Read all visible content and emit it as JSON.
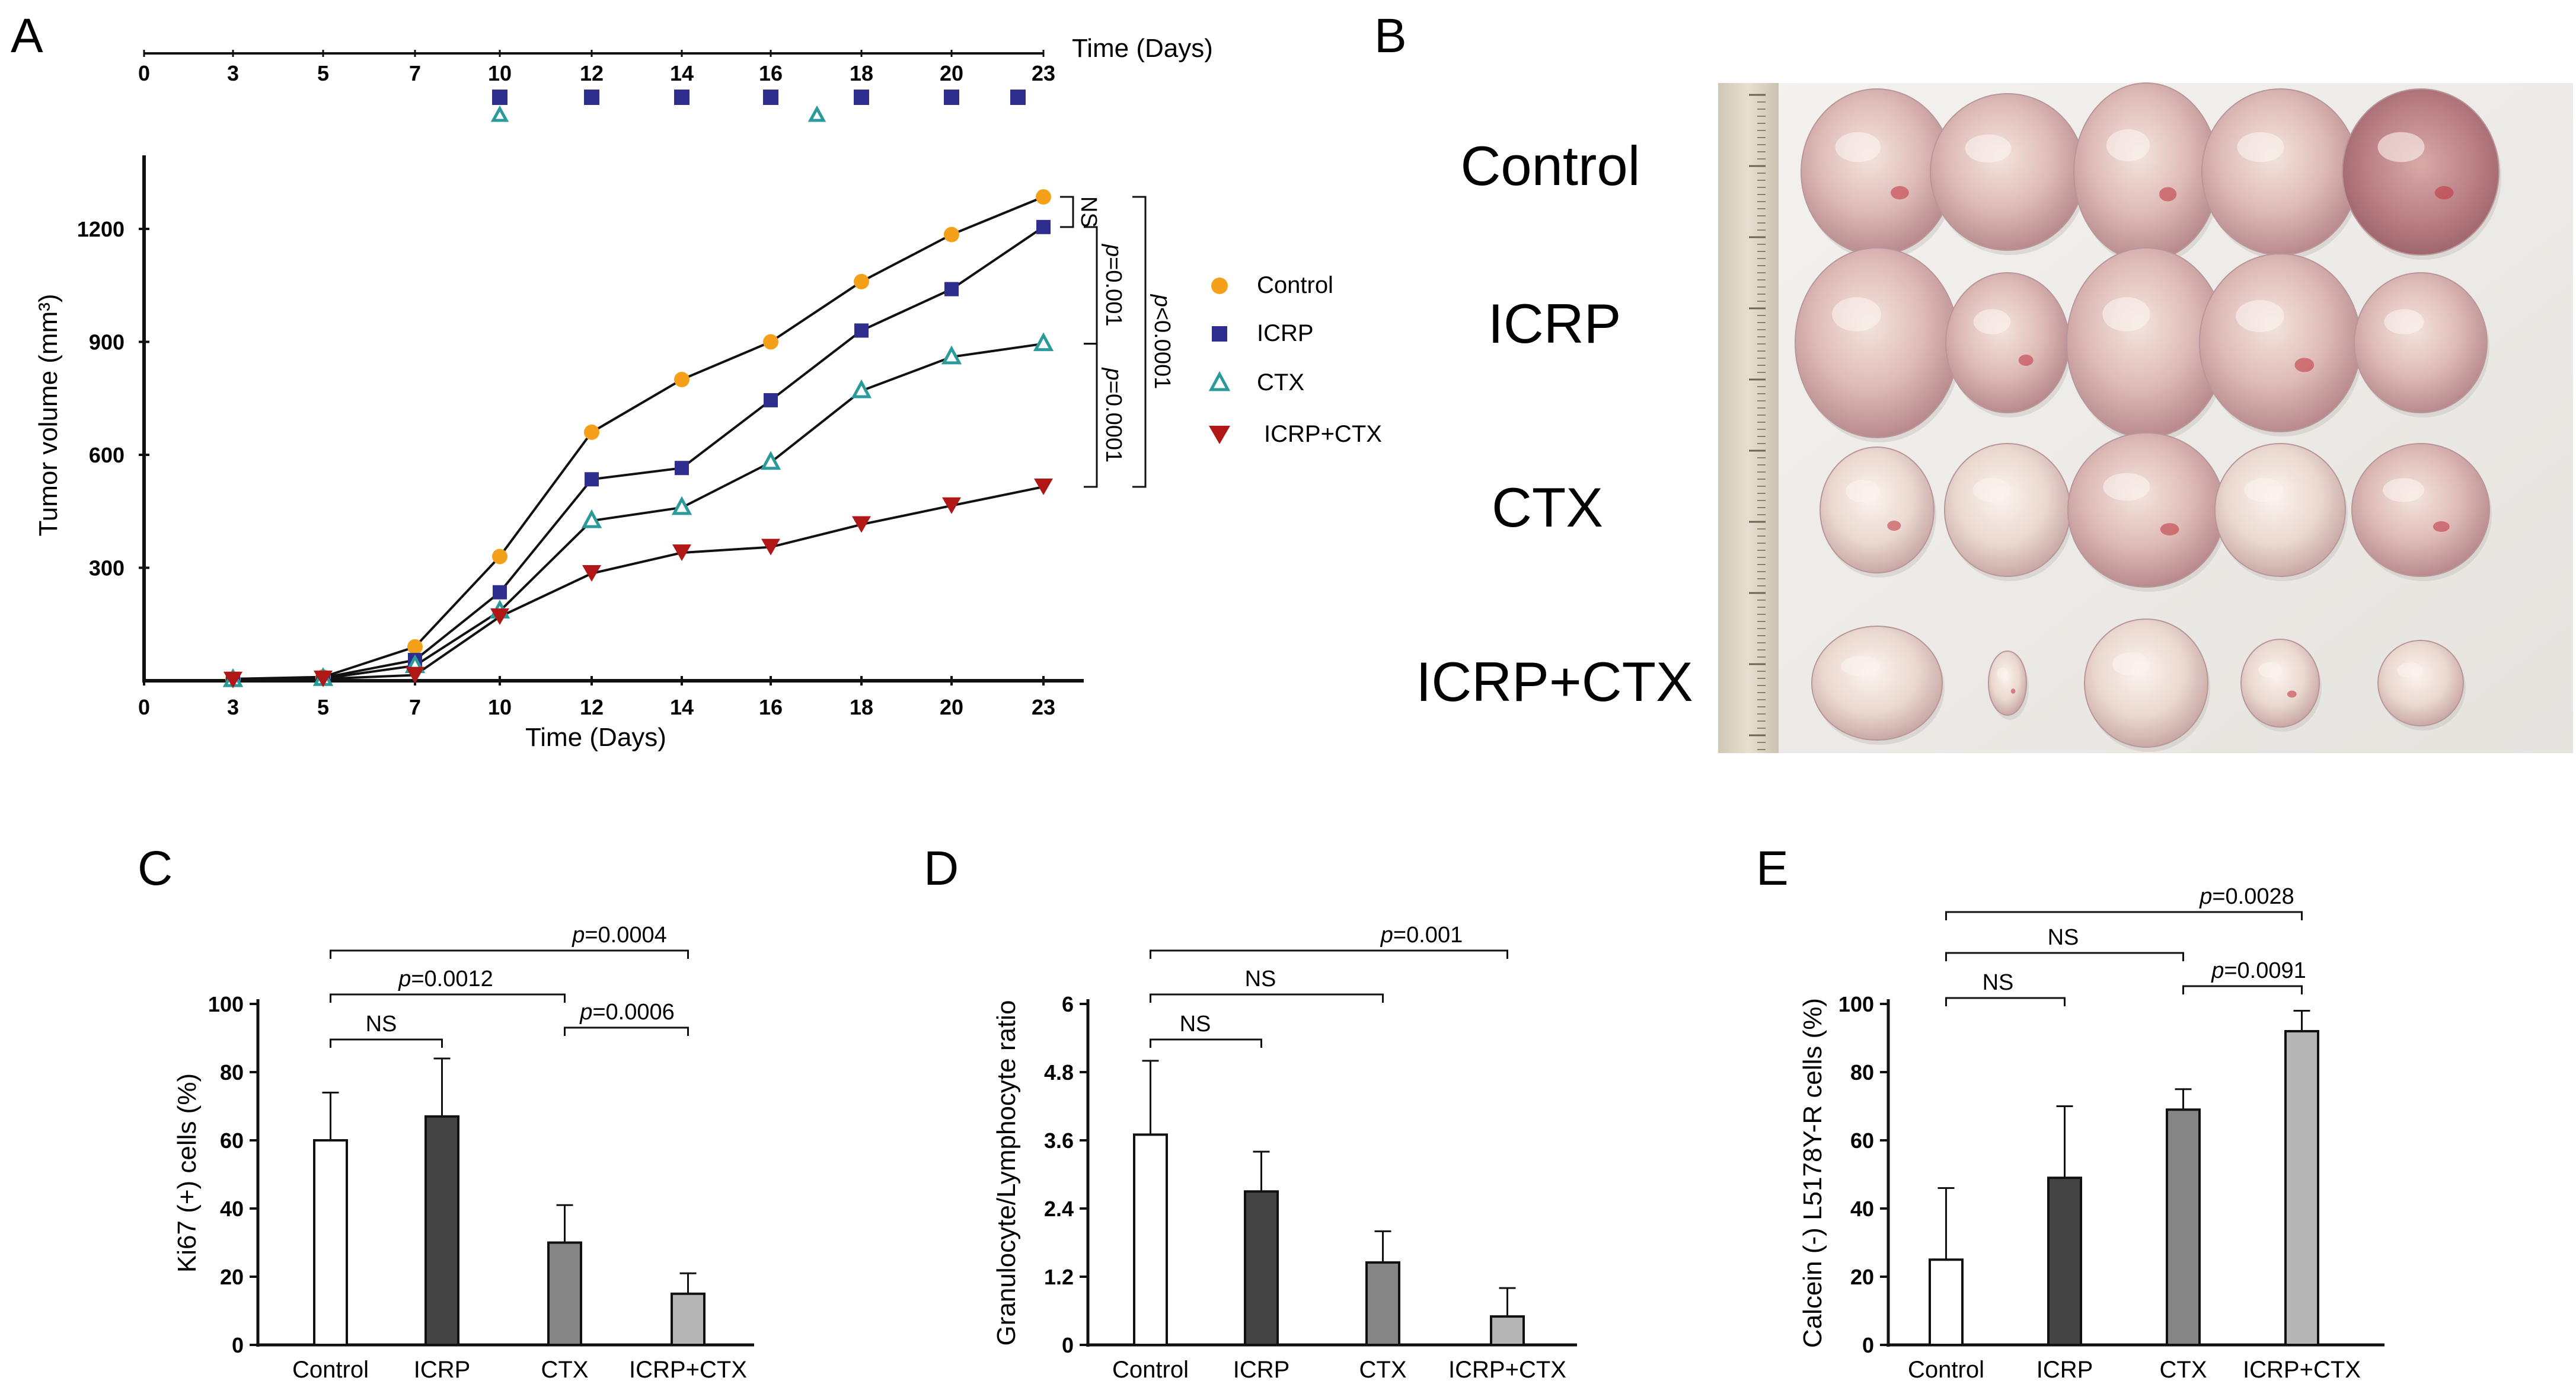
{
  "panels": {
    "A": "A",
    "B": "B",
    "C": "C",
    "D": "D",
    "E": "E"
  },
  "chart_data": [
    {
      "panel": "A",
      "type": "line",
      "title": "",
      "xlabel": "Time (Days)",
      "ylabel": "Tumor volume (mm³)",
      "ylim": [
        0,
        1350
      ],
      "xlim": [
        0,
        24
      ],
      "x_ticks": [
        "0",
        "3",
        "5",
        "7",
        "10",
        "12",
        "14",
        "16",
        "18",
        "20",
        "23"
      ],
      "y_ticks": [
        "300",
        "600",
        "900",
        "1200"
      ],
      "series": [
        {
          "name": "Control",
          "marker": "circle",
          "color": "#F5A01A",
          "x": [
            3,
            5,
            7,
            10,
            12,
            14,
            16,
            18,
            20,
            23
          ],
          "y": [
            5,
            10,
            90,
            330,
            660,
            800,
            900,
            1060,
            1185,
            1285
          ]
        },
        {
          "name": "ICRP",
          "marker": "square",
          "color": "#2E2E8F",
          "x": [
            3,
            5,
            7,
            10,
            12,
            14,
            16,
            18,
            20,
            23
          ],
          "y": [
            5,
            8,
            55,
            235,
            535,
            565,
            745,
            930,
            1040,
            1205
          ]
        },
        {
          "name": "CTX",
          "marker": "triangle-open",
          "color": "#2A9A9A",
          "x": [
            3,
            5,
            7,
            10,
            12,
            14,
            16,
            18,
            20,
            23
          ],
          "y": [
            3,
            6,
            40,
            185,
            425,
            460,
            580,
            770,
            860,
            895
          ]
        },
        {
          "name": "ICRP+CTX",
          "marker": "triangle-down",
          "color": "#B01818",
          "x": [
            3,
            5,
            7,
            10,
            12,
            14,
            16,
            18,
            20,
            23
          ],
          "y": [
            2,
            5,
            15,
            170,
            285,
            340,
            355,
            415,
            465,
            515
          ]
        }
      ],
      "annotations": [
        "NS",
        "p=0.001",
        "p<0.0001",
        "p=0.0001"
      ],
      "schedule": {
        "axis_label": "Time (Days)",
        "ticks": [
          "0",
          "3",
          "5",
          "7",
          "10",
          "12",
          "14",
          "16",
          "18",
          "20",
          "23"
        ],
        "icrp_days": [
          10,
          12,
          14,
          16,
          18,
          20,
          22
        ],
        "ctx_days": [
          10,
          17
        ]
      }
    },
    {
      "panel": "C",
      "type": "bar",
      "ylabel": "Ki67 (+) cells (%)",
      "ylim": [
        0,
        100
      ],
      "y_ticks": [
        "0",
        "20",
        "40",
        "60",
        "80",
        "100"
      ],
      "categories": [
        "Control",
        "ICRP",
        "CTX",
        "ICRP+CTX"
      ],
      "values": [
        60,
        67,
        30,
        15
      ],
      "errors": [
        14,
        17,
        11,
        6
      ],
      "colors": [
        "#ffffff",
        "#444444",
        "#858585",
        "#b5b5b5"
      ],
      "comparisons": [
        {
          "from": 0,
          "to": 1,
          "label": "NS"
        },
        {
          "from": 0,
          "to": 2,
          "label": "p=0.0012"
        },
        {
          "from": 2,
          "to": 3,
          "label": "p=0.0006"
        },
        {
          "from": 0,
          "to": 3,
          "label": "p=0.0004"
        }
      ]
    },
    {
      "panel": "D",
      "type": "bar",
      "ylabel": "Granulocyte/Lymphocyte ratio",
      "ylim": [
        0,
        6
      ],
      "y_ticks": [
        "0",
        "1.2",
        "2.4",
        "3.6",
        "4.8",
        "6"
      ],
      "categories": [
        "Control",
        "ICRP",
        "CTX",
        "ICRP+CTX"
      ],
      "values": [
        3.7,
        2.7,
        1.45,
        0.5
      ],
      "errors": [
        1.3,
        0.7,
        0.55,
        0.5
      ],
      "colors": [
        "#ffffff",
        "#444444",
        "#858585",
        "#b5b5b5"
      ],
      "comparisons": [
        {
          "from": 0,
          "to": 1,
          "label": "NS"
        },
        {
          "from": 0,
          "to": 2,
          "label": "NS"
        },
        {
          "from": 0,
          "to": 3,
          "label": "p=0.001"
        }
      ]
    },
    {
      "panel": "E",
      "type": "bar",
      "ylabel": "Calcein (-) L5178Y-R cells (%)",
      "ylim": [
        0,
        100
      ],
      "y_ticks": [
        "0",
        "20",
        "40",
        "60",
        "80",
        "100"
      ],
      "categories": [
        "Control",
        "ICRP",
        "CTX",
        "ICRP+CTX"
      ],
      "values": [
        25,
        49,
        69,
        92
      ],
      "errors": [
        21,
        21,
        6,
        6
      ],
      "colors": [
        "#ffffff",
        "#444444",
        "#858585",
        "#b5b5b5"
      ],
      "comparisons": [
        {
          "from": 0,
          "to": 1,
          "label": "NS"
        },
        {
          "from": 0,
          "to": 2,
          "label": "NS"
        },
        {
          "from": 2,
          "to": 3,
          "label": "p=0.0091"
        },
        {
          "from": 0,
          "to": 3,
          "label": "p=0.0028"
        }
      ]
    }
  ],
  "photo": {
    "row_labels": [
      "Control",
      "ICRP",
      "CTX",
      "ICRP+CTX"
    ],
    "tumor_counts": [
      5,
      5,
      5,
      5
    ]
  }
}
